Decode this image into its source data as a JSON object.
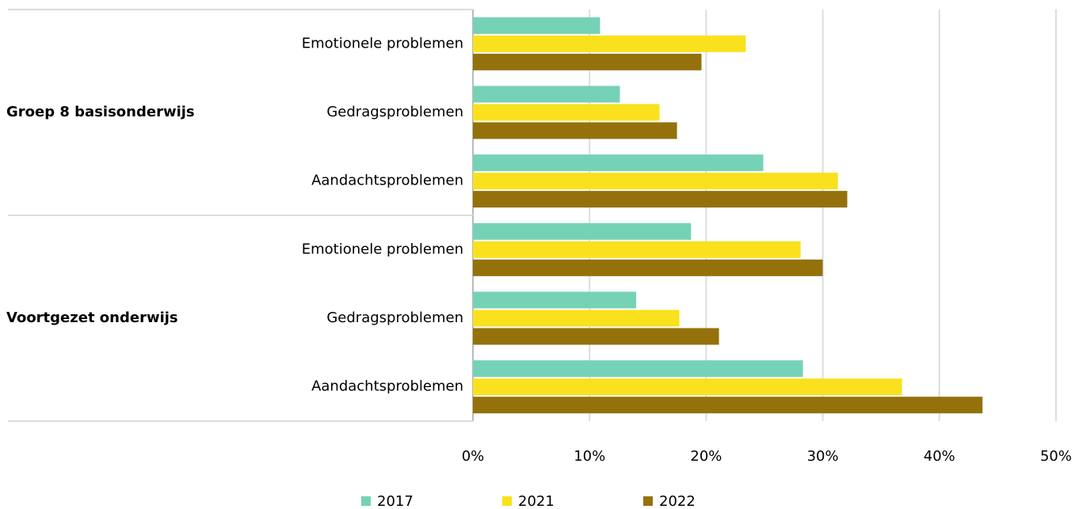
{
  "chart_data": {
    "type": "hbar",
    "categories": [
      "Emotionele problemen",
      "Gedragsproblemen",
      "Aandachtsproblemen",
      "Emotionele problemen",
      "Gedragsproblemen",
      "Aandachtsproblemen"
    ],
    "group_labels": [
      "Groep 8 basisonderwijs",
      null,
      null,
      "Voortgezet onderwijs",
      null,
      null
    ],
    "series": [
      {
        "name": "2017",
        "color": "#76d2b6",
        "values": [
          10.9,
          12.6,
          24.9,
          18.7,
          14.0,
          28.3
        ]
      },
      {
        "name": "2021",
        "color": "#f9e11e",
        "values": [
          23.4,
          16.0,
          31.3,
          28.1,
          17.7,
          36.8
        ]
      },
      {
        "name": "2022",
        "color": "#94710a",
        "values": [
          19.6,
          17.5,
          32.1,
          30.0,
          21.1,
          43.7
        ]
      }
    ],
    "xlim": [
      0,
      50
    ],
    "xticks": [
      {
        "value": 0,
        "label": "0%"
      },
      {
        "value": 10,
        "label": "10%"
      },
      {
        "value": 20,
        "label": "20%"
      },
      {
        "value": 30,
        "label": "30%"
      },
      {
        "value": 40,
        "label": "40%"
      },
      {
        "value": 50,
        "label": "50%"
      }
    ],
    "grid": true
  }
}
